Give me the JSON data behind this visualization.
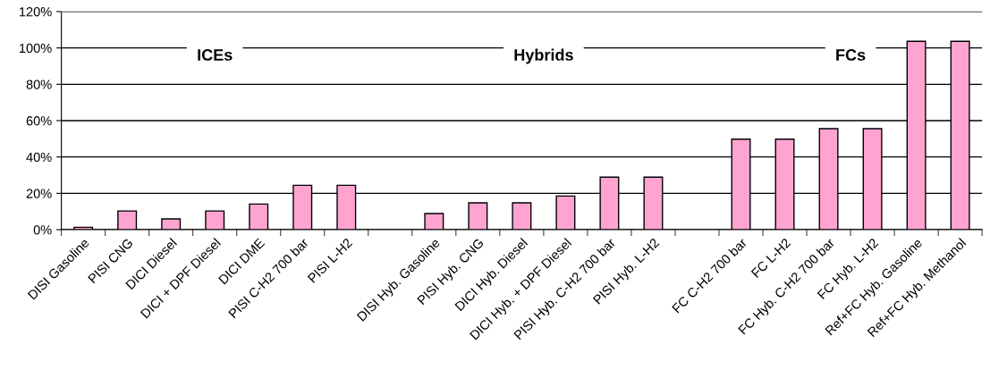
{
  "chart_data": {
    "type": "bar",
    "categories": [
      "DISI Gasoline",
      "PISI CNG",
      "DICI Diesel",
      "DICI + DPF Diesel",
      "DICI DME",
      "PISI C-H2 700 bar",
      "PISI L-H2",
      null,
      "DISI Hyb. Gasoline",
      "PISI Hyb. CNG",
      "DICI Hyb. Diesel",
      "DICI Hyb. + DPF Diesel",
      "PISI Hyb. C-H2 700 bar",
      "PISI Hyb. L-H2",
      null,
      "FC C-H2 700 bar",
      "FC L-H2",
      "FC Hyb. C-H2 700 bar",
      "FC Hyb. L-H2",
      "Ref+FC Hyb. Gasoline",
      "Ref+FC Hyb. Methanol"
    ],
    "values": [
      1.3,
      10.3,
      5.9,
      10.3,
      14.1,
      24.4,
      24.4,
      null,
      8.9,
      14.8,
      14.8,
      18.5,
      28.9,
      28.9,
      null,
      49.8,
      49.8,
      55.6,
      55.6,
      103.6,
      103.6
    ],
    "color": "#ffa3d1",
    "ylim": [
      0,
      120
    ],
    "yticks": [
      {
        "value": 0,
        "label": "0%"
      },
      {
        "value": 20,
        "label": "20%"
      },
      {
        "value": 40,
        "label": "40%"
      },
      {
        "value": 60,
        "label": "60%"
      },
      {
        "value": 80,
        "label": "80%"
      },
      {
        "value": 100,
        "label": "100%"
      },
      {
        "value": 120,
        "label": "120%"
      }
    ],
    "grid": "y",
    "annotations": [
      "ICEs",
      "Hybrids",
      "FCs"
    ]
  }
}
